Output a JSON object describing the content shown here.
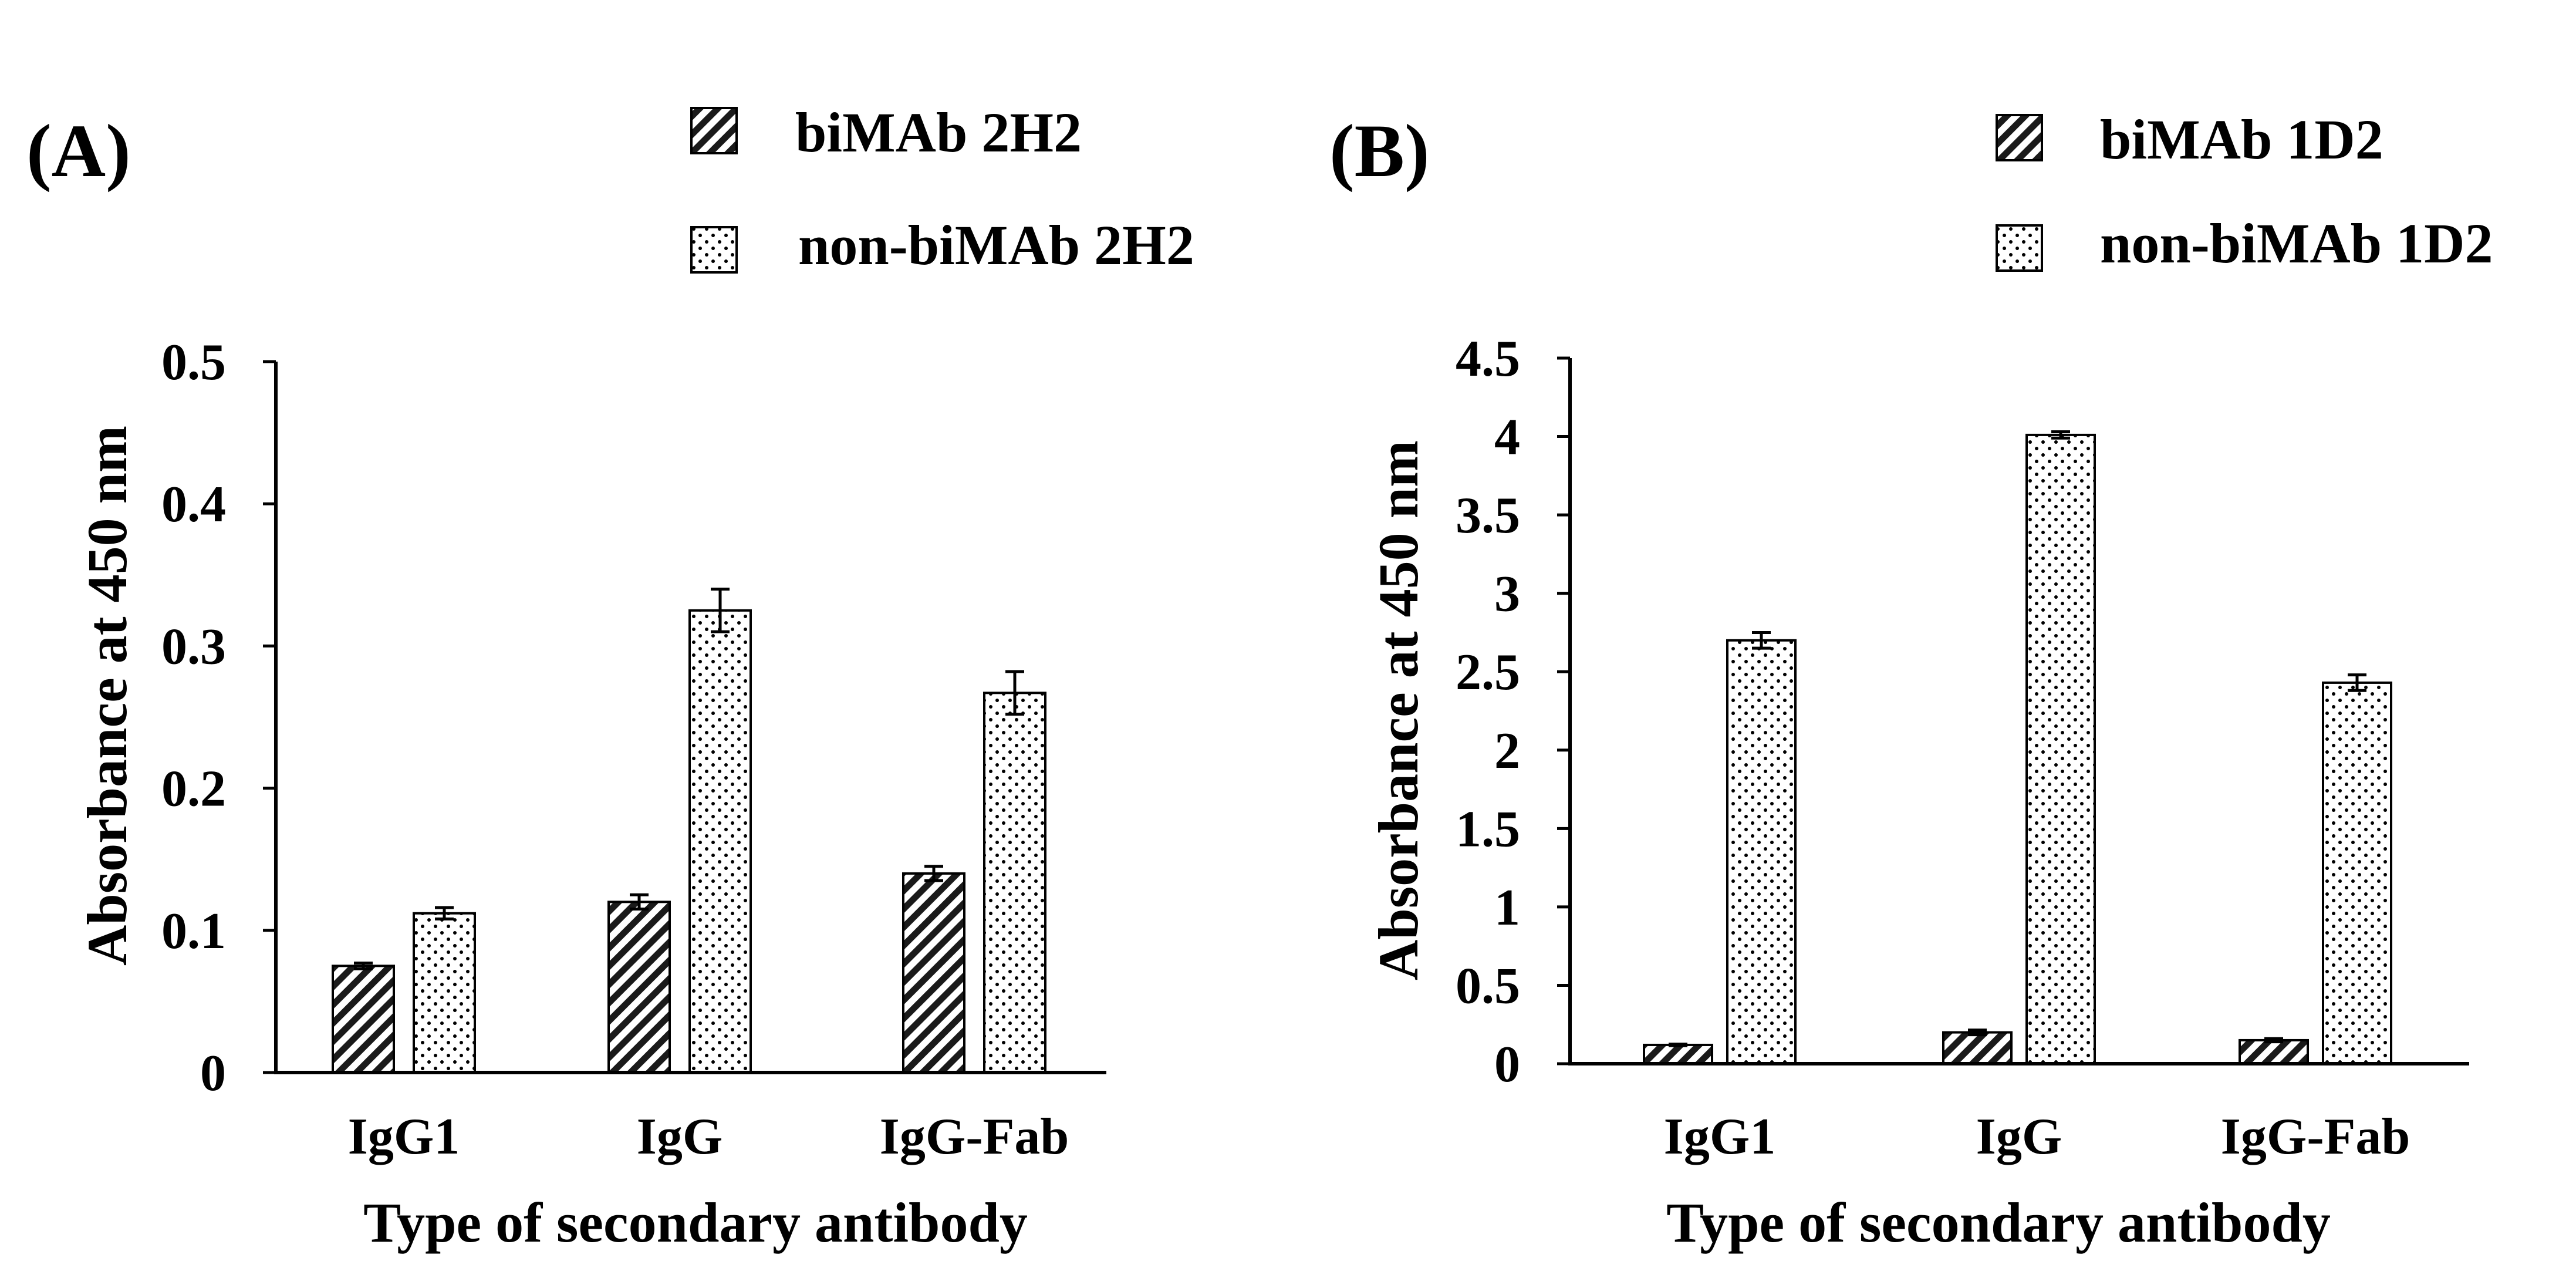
{
  "chart_data": [
    {
      "type": "bar",
      "panel_label": "(A)",
      "title": "",
      "xlabel": "Type of secondary antibody",
      "ylabel": "Absorbance at 450 nm",
      "categories": [
        "IgG1",
        "IgG",
        "IgG-Fab"
      ],
      "ylim": [
        0,
        0.5
      ],
      "yticks": [
        0,
        0.1,
        0.2,
        0.3,
        0.4,
        0.5
      ],
      "ytick_labels": [
        "0",
        "0.1",
        "0.2",
        "0.3",
        "0.4",
        "0.5"
      ],
      "grid": false,
      "legend_position": "top",
      "series": [
        {
          "name": "biMAb 2H2",
          "pattern": "hatch",
          "values": [
            0.075,
            0.12,
            0.14
          ],
          "errors": [
            0.002,
            0.005,
            0.005
          ]
        },
        {
          "name": "non-biMAb 2H2",
          "pattern": "dots",
          "values": [
            0.112,
            0.325,
            0.267
          ],
          "errors": [
            0.004,
            0.015,
            0.015
          ]
        }
      ]
    },
    {
      "type": "bar",
      "panel_label": "(B)",
      "title": "",
      "xlabel": "Type of secondary antibody",
      "ylabel": "Absorbance at 450 nm",
      "categories": [
        "IgG1",
        "IgG",
        "IgG-Fab"
      ],
      "ylim": [
        0,
        4.5
      ],
      "yticks": [
        0,
        0.5,
        1,
        1.5,
        2,
        2.5,
        3,
        3.5,
        4,
        4.5
      ],
      "ytick_labels": [
        "0",
        "0.5",
        "1",
        "1.5",
        "2",
        "2.5",
        "3",
        "3.5",
        "4",
        "4.5"
      ],
      "grid": false,
      "legend_position": "top-right",
      "series": [
        {
          "name": "biMAb 1D2",
          "pattern": "hatch",
          "values": [
            0.12,
            0.2,
            0.15
          ],
          "errors": [
            0.005,
            0.015,
            0.01
          ]
        },
        {
          "name": "non-biMAb 1D2",
          "pattern": "dots",
          "values": [
            2.7,
            4.01,
            2.43
          ],
          "errors": [
            0.05,
            0.02,
            0.05
          ]
        }
      ]
    }
  ]
}
